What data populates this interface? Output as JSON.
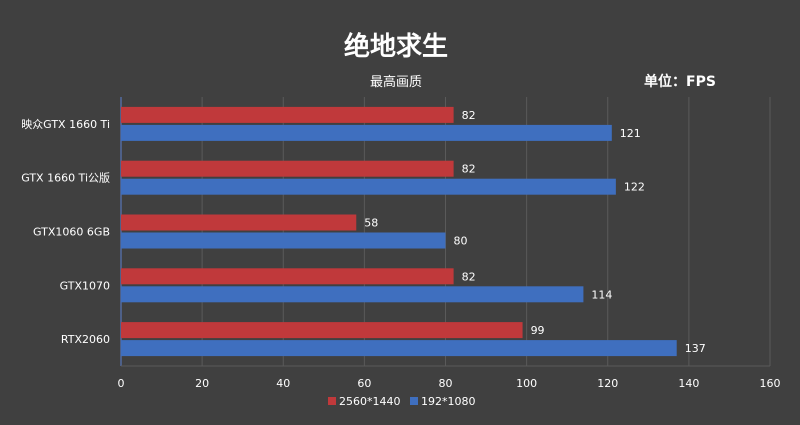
{
  "chart_data": {
    "type": "bar",
    "orientation": "horizontal",
    "title": "绝地求生",
    "subtitle": "最高画质",
    "unit_label": "单位：FPS",
    "categories": [
      "映众GTX 1660 Ti",
      "GTX 1660 Ti公版",
      "GTX1060 6GB",
      "GTX1070",
      "RTX2060"
    ],
    "series": [
      {
        "name": "2560*1440",
        "values": [
          82,
          82,
          58,
          82,
          99
        ],
        "color": "#c0393b"
      },
      {
        "name": "192*1080",
        "values": [
          121,
          122,
          80,
          114,
          137
        ],
        "color": "#3f6fbf"
      }
    ],
    "xlim": [
      0,
      160
    ],
    "xticks": [
      0,
      20,
      40,
      60,
      80,
      100,
      120,
      140,
      160
    ],
    "grid": true,
    "legend_position": "bottom",
    "colors": {
      "background": "#404040",
      "grid": "#5a5a5a",
      "text": "#ffffff",
      "axis": "#5b7fd0"
    }
  }
}
